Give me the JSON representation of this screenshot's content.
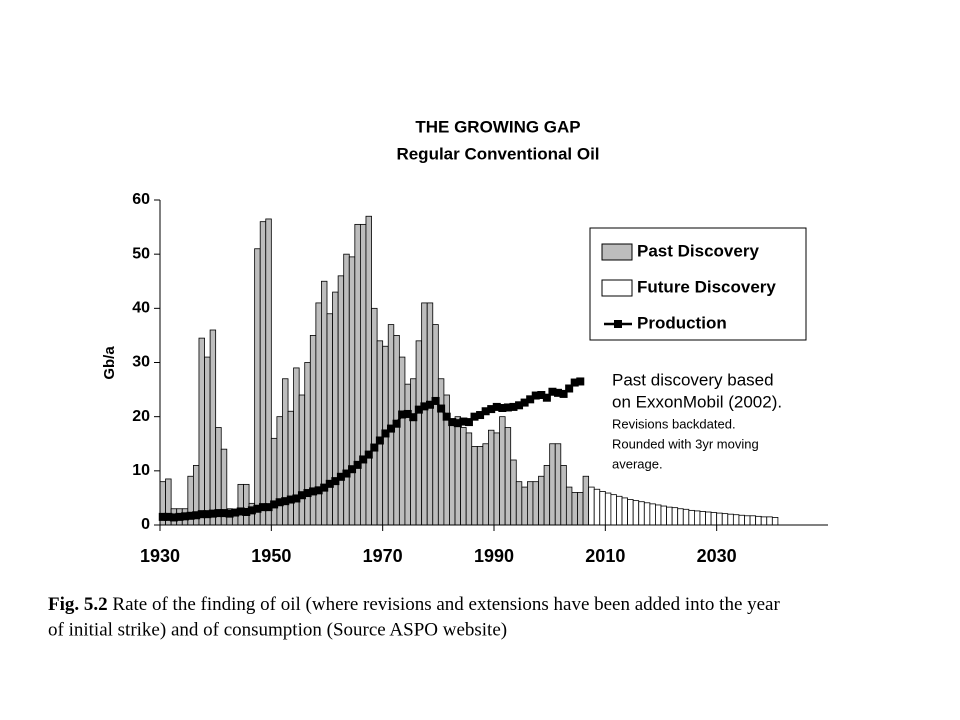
{
  "chart_data": {
    "type": "bar",
    "title": "THE GROWING GAP",
    "subtitle": "Regular Conventional Oil",
    "ylabel": "Gb/a",
    "xlim": [
      1930,
      2050
    ],
    "xticks": [
      1930,
      1950,
      1970,
      1990,
      2010,
      2030
    ],
    "ylim": [
      0,
      60
    ],
    "yticks": [
      0,
      10,
      20,
      30,
      40,
      50,
      60
    ],
    "legend": "upper right",
    "series": [
      {
        "name": "Past Discovery",
        "type": "bar",
        "color": "#bdbdbd",
        "x": [
          1930,
          1931,
          1932,
          1933,
          1934,
          1935,
          1936,
          1937,
          1938,
          1939,
          1940,
          1941,
          1942,
          1943,
          1944,
          1945,
          1946,
          1947,
          1948,
          1949,
          1950,
          1951,
          1952,
          1953,
          1954,
          1955,
          1956,
          1957,
          1958,
          1959,
          1960,
          1961,
          1962,
          1963,
          1964,
          1965,
          1966,
          1967,
          1968,
          1969,
          1970,
          1971,
          1972,
          1973,
          1974,
          1975,
          1976,
          1977,
          1978,
          1979,
          1980,
          1981,
          1982,
          1983,
          1984,
          1985,
          1986,
          1987,
          1988,
          1989,
          1990,
          1991,
          1992,
          1993,
          1994,
          1995,
          1996,
          1997,
          1998,
          1999,
          2000,
          2001,
          2002,
          2003,
          2004,
          2005,
          2006
        ],
        "values": [
          8,
          8.5,
          3,
          3,
          3,
          9,
          11,
          34.5,
          31,
          36,
          18,
          14,
          3,
          2.5,
          7.5,
          7.5,
          4,
          51,
          56,
          56.5,
          16,
          20,
          27,
          21,
          29,
          24,
          30,
          35,
          41,
          45,
          39,
          43,
          46,
          50,
          49.5,
          55.5,
          55.5,
          57,
          40,
          34,
          33,
          37,
          35,
          31,
          26,
          27,
          34,
          41,
          41,
          37,
          27,
          24,
          19,
          20,
          18,
          17,
          14.5,
          14.5,
          15,
          17.5,
          17,
          20,
          18,
          12,
          8,
          7,
          8,
          8,
          9,
          11,
          15,
          15,
          11,
          7,
          6,
          6,
          9
        ]
      },
      {
        "name": "Future Discovery",
        "type": "bar",
        "color": "#ffffff",
        "x": [
          2007,
          2008,
          2009,
          2010,
          2011,
          2012,
          2013,
          2014,
          2015,
          2016,
          2017,
          2018,
          2019,
          2020,
          2021,
          2022,
          2023,
          2024,
          2025,
          2026,
          2027,
          2028,
          2029,
          2030,
          2031,
          2032,
          2033,
          2034,
          2035,
          2036,
          2037,
          2038,
          2039,
          2040
        ],
        "values": [
          7,
          6.6,
          6.2,
          5.9,
          5.6,
          5.3,
          5,
          4.7,
          4.5,
          4.3,
          4.1,
          3.9,
          3.7,
          3.5,
          3.3,
          3.2,
          3,
          2.9,
          2.7,
          2.6,
          2.5,
          2.4,
          2.3,
          2.2,
          2.1,
          2,
          1.9,
          1.8,
          1.7,
          1.7,
          1.6,
          1.5,
          1.5,
          1.4
        ]
      },
      {
        "name": "Production",
        "type": "line",
        "color": "#000000",
        "x": [
          1930,
          1931,
          1932,
          1933,
          1934,
          1935,
          1936,
          1937,
          1938,
          1939,
          1940,
          1941,
          1942,
          1943,
          1944,
          1945,
          1946,
          1947,
          1948,
          1949,
          1950,
          1951,
          1952,
          1953,
          1954,
          1955,
          1956,
          1957,
          1958,
          1959,
          1960,
          1961,
          1962,
          1963,
          1964,
          1965,
          1966,
          1967,
          1968,
          1969,
          1970,
          1971,
          1972,
          1973,
          1974,
          1975,
          1976,
          1977,
          1978,
          1979,
          1980,
          1981,
          1982,
          1983,
          1984,
          1985,
          1986,
          1987,
          1988,
          1989,
          1990,
          1991,
          1992,
          1993,
          1994,
          1995,
          1996,
          1997,
          1998,
          1999,
          2000,
          2001,
          2002,
          2003,
          2004,
          2005
        ],
        "values": [
          1.5,
          1.5,
          1.4,
          1.5,
          1.6,
          1.7,
          1.8,
          2,
          2,
          2.1,
          2.2,
          2.2,
          2.1,
          2.3,
          2.5,
          2.4,
          2.7,
          3,
          3.3,
          3.3,
          3.8,
          4.2,
          4.4,
          4.7,
          4.9,
          5.5,
          5.9,
          6.2,
          6.4,
          6.9,
          7.6,
          8.1,
          8.9,
          9.5,
          10.3,
          11.1,
          12.1,
          13,
          14.3,
          15.6,
          16.9,
          17.8,
          18.7,
          20.4,
          20.5,
          19.9,
          21.3,
          21.9,
          22.2,
          22.9,
          21.5,
          20,
          19,
          18.8,
          19.1,
          19,
          20,
          20.3,
          21,
          21.4,
          21.8,
          21.6,
          21.7,
          21.8,
          22.1,
          22.6,
          23.2,
          23.9,
          24,
          23.5,
          24.6,
          24.4,
          24.2,
          25.2,
          26.3,
          26.5
        ]
      }
    ],
    "annotations": [
      "Past discovery based",
      "on ExxonMobil (2002).",
      "Revisions backdated.",
      "Rounded with 3yr moving",
      "average."
    ]
  },
  "caption": {
    "label": "Fig. 5.2",
    "lines": [
      "Rate of the finding of oil (where revisions and extensions have been added into the year",
      "of initial strike) and of consumption (Source ASPO website)"
    ]
  }
}
